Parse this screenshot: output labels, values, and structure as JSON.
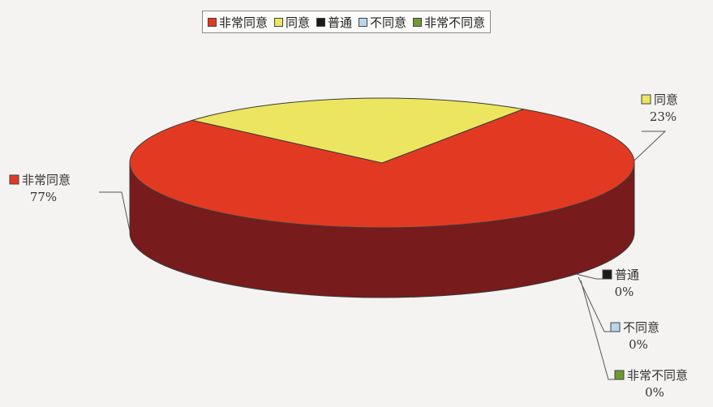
{
  "chart_data": {
    "type": "pie",
    "style": "3d",
    "title": "",
    "categories": [
      "非常同意",
      "同意",
      "普通",
      "不同意",
      "非常不同意"
    ],
    "values": [
      77,
      23,
      0,
      0,
      0
    ],
    "value_labels": [
      "77%",
      "23%",
      "0%",
      "0%",
      "0%"
    ],
    "colors": [
      "#e23a22",
      "#ece560",
      "#1a1a1a",
      "#b9d6ec",
      "#6f9a33"
    ],
    "side_colors": [
      "#771b1c",
      "#8b8634",
      "#111111",
      "#7f98aa",
      "#4e6e22"
    ],
    "legend": "top"
  }
}
